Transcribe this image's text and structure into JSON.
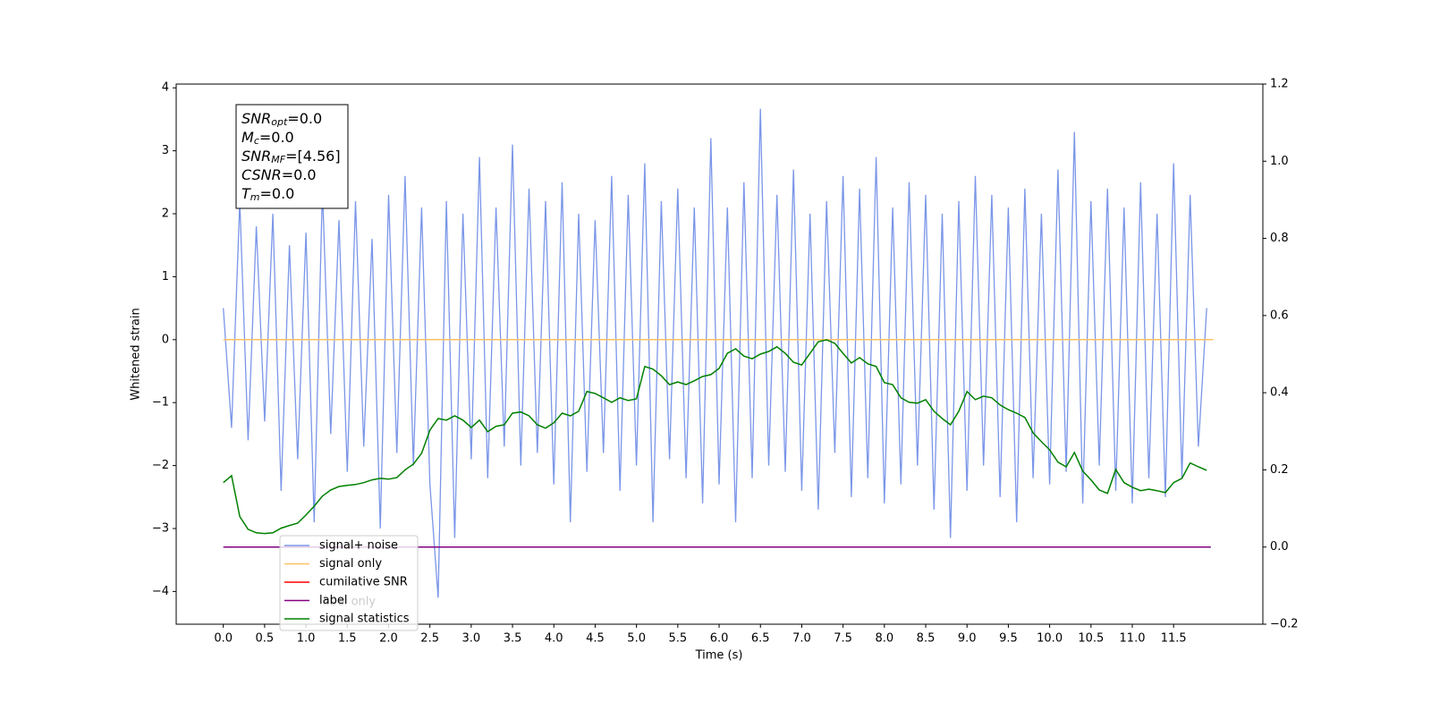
{
  "chart_data": {
    "type": "line",
    "xlabel": "Time (s)",
    "ylabel": "Whitened strain",
    "xlim": [
      -0.57,
      12.58
    ],
    "ylim": [
      -4.52,
      4.06
    ],
    "y2lim": [
      -0.2,
      1.2
    ],
    "xticks": [
      {
        "value": 0,
        "label": "0.0"
      },
      0.5,
      {
        "value": 1,
        "label": "1.0"
      },
      1.5,
      {
        "value": 2,
        "label": "2.0"
      },
      2.5,
      {
        "value": 3,
        "label": "3.0"
      },
      3.5,
      {
        "value": 4,
        "label": "4.0"
      },
      4.5,
      {
        "value": 5,
        "label": "5.0"
      },
      5.5,
      {
        "value": 6,
        "label": "6.0"
      },
      6.5,
      {
        "value": 7,
        "label": "7.0"
      },
      7.5,
      {
        "value": 8,
        "label": "8.0"
      },
      8.5,
      {
        "value": 9,
        "label": "9.0"
      },
      9.5,
      {
        "value": 10,
        "label": "10.0"
      },
      10.5,
      {
        "value": 11,
        "label": "11.0"
      },
      11.5
    ],
    "yticks": [
      {
        "value": -4,
        "label": "−4"
      },
      {
        "value": -3,
        "label": "−3"
      },
      {
        "value": -2,
        "label": "−2"
      },
      {
        "value": -1,
        "label": "−1"
      },
      0,
      1,
      2,
      3,
      4
    ],
    "y2ticks": [
      {
        "value": -0.2,
        "label": "−0.2"
      },
      {
        "value": 0,
        "label": "0.0"
      },
      0.2,
      0.4,
      0.6,
      0.8,
      {
        "value": 1,
        "label": "1.0"
      },
      1.2
    ],
    "annotation": [
      {
        "main": "SNR",
        "sub": "opt",
        "rest": "=0.0"
      },
      {
        "main": "M",
        "sub": "c",
        "rest": "=0.0"
      },
      {
        "main": "SNR",
        "sub": "MF",
        "rest": "=[4.56]"
      },
      {
        "main": "CSNR",
        "sub": "",
        "rest": "=0.0"
      },
      {
        "main": "T",
        "sub": "m",
        "rest": "=0.0"
      }
    ],
    "ghost_legend_text": "label only",
    "series": [
      {
        "name": "signal+ noise",
        "color": "#7a96e8",
        "axis": "y",
        "x": [
          0,
          0.1,
          0.2,
          0.3,
          0.4,
          0.5,
          0.6,
          0.7,
          0.8,
          0.9,
          1,
          1.1,
          1.2,
          1.3,
          1.4,
          1.5,
          1.6,
          1.7,
          1.8,
          1.9,
          2,
          2.1,
          2.2,
          2.3,
          2.4,
          2.5,
          2.6,
          2.7,
          2.8,
          2.9,
          3,
          3.1,
          3.2,
          3.3,
          3.4,
          3.5,
          3.6,
          3.7,
          3.8,
          3.9,
          4,
          4.1,
          4.2,
          4.3,
          4.4,
          4.5,
          4.6,
          4.7,
          4.8,
          4.9,
          5,
          5.1,
          5.2,
          5.3,
          5.4,
          5.5,
          5.6,
          5.7,
          5.8,
          5.9,
          6,
          6.1,
          6.2,
          6.3,
          6.4,
          6.5,
          6.6,
          6.7,
          6.8,
          6.9,
          7,
          7.1,
          7.2,
          7.3,
          7.4,
          7.5,
          7.6,
          7.7,
          7.8,
          7.9,
          8,
          8.1,
          8.2,
          8.3,
          8.4,
          8.5,
          8.6,
          8.7,
          8.8,
          8.9,
          9,
          9.1,
          9.2,
          9.3,
          9.4,
          9.5,
          9.6,
          9.7,
          9.8,
          9.9,
          10,
          10.1,
          10.2,
          10.3,
          10.4,
          10.5,
          10.6,
          10.7,
          10.8,
          10.9,
          11,
          11.1,
          11.2,
          11.3,
          11.4,
          11.5,
          11.6,
          11.7,
          11.8,
          11.9
        ],
        "values": [
          0.5,
          -1.4,
          2.2,
          -1.6,
          1.8,
          -1.3,
          2.0,
          -2.4,
          1.5,
          -1.9,
          1.7,
          -2.9,
          2.4,
          -1.5,
          1.9,
          -2.1,
          2.2,
          -1.7,
          1.6,
          -3.0,
          2.3,
          -1.8,
          2.6,
          -2.0,
          2.1,
          -2.3,
          -4.1,
          2.2,
          -3.15,
          2.0,
          -1.9,
          2.9,
          -2.2,
          2.1,
          -1.7,
          3.1,
          -2.0,
          2.4,
          -1.8,
          2.2,
          -2.3,
          2.5,
          -2.9,
          2.0,
          -2.1,
          1.9,
          -1.8,
          2.6,
          -2.4,
          2.3,
          -2.0,
          2.8,
          -2.9,
          2.2,
          -1.9,
          2.4,
          -2.2,
          2.1,
          -2.6,
          3.2,
          -2.3,
          2.1,
          -2.9,
          2.5,
          -2.2,
          3.67,
          -2.0,
          2.3,
          -2.1,
          2.7,
          -2.4,
          2.0,
          -2.7,
          2.2,
          -1.8,
          2.6,
          -2.5,
          2.4,
          -2.2,
          2.9,
          -2.6,
          2.1,
          -2.3,
          2.5,
          -2.0,
          2.3,
          -2.7,
          2.0,
          -3.15,
          2.2,
          -2.4,
          2.6,
          -2.0,
          2.3,
          -2.5,
          2.1,
          -2.9,
          2.4,
          -2.2,
          2.0,
          -2.3,
          2.7,
          -2.1,
          3.3,
          -2.6,
          2.2,
          -2.0,
          2.4,
          -2.4,
          2.1,
          -2.6,
          2.5,
          -2.2,
          2.0,
          -2.5,
          2.8,
          -2.2,
          2.3,
          -1.7,
          0.5
        ]
      },
      {
        "name": "signal only",
        "color": "#ffc266",
        "axis": "y",
        "x": [
          0,
          11.98
        ],
        "values": [
          0,
          0
        ]
      },
      {
        "name": "cumilative SNR",
        "color": "#ff0000",
        "axis": "y2",
        "x": [],
        "values": []
      },
      {
        "name": "label",
        "color": "#800080",
        "axis": "y2",
        "x": [
          0,
          11.95
        ],
        "values": [
          0,
          0
        ]
      },
      {
        "name": "signal statistics",
        "color": "#008000",
        "axis": "y2",
        "x": [
          0,
          0.1,
          0.2,
          0.3,
          0.4,
          0.5,
          0.6,
          0.7,
          0.8,
          0.9,
          1,
          1.1,
          1.2,
          1.3,
          1.4,
          1.5,
          1.6,
          1.7,
          1.8,
          1.9,
          2,
          2.1,
          2.2,
          2.3,
          2.4,
          2.5,
          2.6,
          2.7,
          2.8,
          2.9,
          3,
          3.1,
          3.2,
          3.3,
          3.4,
          3.5,
          3.6,
          3.7,
          3.8,
          3.9,
          4,
          4.1,
          4.2,
          4.3,
          4.4,
          4.5,
          4.6,
          4.7,
          4.8,
          4.9,
          5,
          5.1,
          5.2,
          5.3,
          5.4,
          5.5,
          5.6,
          5.7,
          5.8,
          5.9,
          6,
          6.1,
          6.2,
          6.3,
          6.4,
          6.5,
          6.6,
          6.7,
          6.8,
          6.9,
          7,
          7.1,
          7.2,
          7.3,
          7.4,
          7.5,
          7.6,
          7.7,
          7.8,
          7.9,
          8,
          8.1,
          8.2,
          8.3,
          8.4,
          8.5,
          8.6,
          8.7,
          8.8,
          8.9,
          9,
          9.1,
          9.2,
          9.3,
          9.4,
          9.5,
          9.6,
          9.7,
          9.8,
          9.9,
          10,
          10.1,
          10.2,
          10.3,
          10.4,
          10.5,
          10.6,
          10.7,
          10.8,
          10.9,
          11,
          11.1,
          11.2,
          11.3,
          11.4,
          11.5,
          11.6,
          11.7,
          11.8,
          11.9
        ],
        "values": [
          0.167,
          0.185,
          0.079,
          0.046,
          0.037,
          0.035,
          0.037,
          0.049,
          0.056,
          0.062,
          0.083,
          0.106,
          0.132,
          0.148,
          0.157,
          0.16,
          0.162,
          0.167,
          0.174,
          0.178,
          0.176,
          0.18,
          0.2,
          0.215,
          0.243,
          0.303,
          0.333,
          0.329,
          0.34,
          0.329,
          0.31,
          0.329,
          0.299,
          0.313,
          0.317,
          0.347,
          0.35,
          0.34,
          0.317,
          0.308,
          0.322,
          0.347,
          0.34,
          0.352,
          0.403,
          0.398,
          0.387,
          0.375,
          0.387,
          0.38,
          0.384,
          0.468,
          0.461,
          0.444,
          0.421,
          0.428,
          0.421,
          0.431,
          0.442,
          0.447,
          0.463,
          0.502,
          0.514,
          0.495,
          0.488,
          0.5,
          0.507,
          0.519,
          0.502,
          0.479,
          0.472,
          0.502,
          0.532,
          0.537,
          0.528,
          0.502,
          0.477,
          0.491,
          0.475,
          0.468,
          0.426,
          0.421,
          0.387,
          0.375,
          0.373,
          0.382,
          0.352,
          0.333,
          0.317,
          0.352,
          0.403,
          0.382,
          0.391,
          0.387,
          0.368,
          0.356,
          0.347,
          0.336,
          0.296,
          0.273,
          0.252,
          0.22,
          0.208,
          0.245,
          0.197,
          0.174,
          0.148,
          0.139,
          0.201,
          0.167,
          0.155,
          0.146,
          0.15,
          0.146,
          0.141,
          0.167,
          0.178,
          0.218,
          0.208,
          0.199
        ]
      }
    ]
  }
}
